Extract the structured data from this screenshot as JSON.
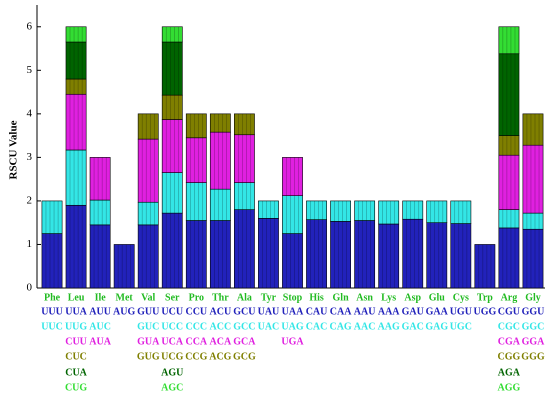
{
  "chart_data": {
    "type": "stacked_bar",
    "ylabel": "RSCU Value",
    "categories": [
      "Phe",
      "Leu",
      "Ile",
      "Met",
      "Val",
      "Ser",
      "Pro",
      "Thr",
      "Ala",
      "Tyr",
      "Stop",
      "His",
      "Gln",
      "Asn",
      "Lys",
      "Asp",
      "Glu",
      "Cys",
      "Trp",
      "Arg",
      "Gly"
    ],
    "ylim": [
      0,
      6.5
    ],
    "yticks": [
      0,
      1,
      2,
      3,
      4,
      5,
      6
    ],
    "series": [
      {
        "color": "#2222bb",
        "values": [
          1.25,
          1.9,
          1.45,
          1.0,
          1.45,
          1.72,
          1.55,
          1.55,
          1.8,
          1.6,
          1.25,
          1.57,
          1.53,
          1.55,
          1.47,
          1.58,
          1.5,
          1.48,
          1.0,
          1.38,
          1.35
        ],
        "codons": [
          "UUU",
          "UUA",
          "AUU",
          "AUG",
          "GUU",
          "UCU",
          "CCU",
          "ACU",
          "GCU",
          "UAU",
          "UAA",
          "CAU",
          "CAA",
          "AAU",
          "AAA",
          "GAU",
          "GAA",
          "UGU",
          "UGG",
          "CGU",
          "GGU"
        ]
      },
      {
        "color": "#33e6e6",
        "values": [
          0.75,
          1.27,
          0.57,
          null,
          0.52,
          0.93,
          0.87,
          0.72,
          0.62,
          0.4,
          0.87,
          0.43,
          0.47,
          0.45,
          0.53,
          0.42,
          0.5,
          0.52,
          null,
          0.42,
          0.37
        ],
        "codons": [
          "UUC",
          "UUG",
          "AUC",
          null,
          "GUC",
          "UCC",
          "CCC",
          "ACC",
          "GCC",
          "UAC",
          "UAG",
          "CAC",
          "CAG",
          "AAC",
          "AAG",
          "GAC",
          "GAG",
          "UGC",
          null,
          "CGC",
          "GGC"
        ]
      },
      {
        "color": "#e020e0",
        "values": [
          null,
          1.28,
          0.98,
          null,
          1.45,
          1.22,
          1.03,
          1.31,
          1.1,
          null,
          0.88,
          null,
          null,
          null,
          null,
          null,
          null,
          null,
          null,
          1.25,
          1.56
        ],
        "codons": [
          null,
          "CUU",
          "AUA",
          null,
          "GUA",
          "UCA",
          "CCA",
          "ACA",
          "GCA",
          null,
          "UGA",
          null,
          null,
          null,
          null,
          null,
          null,
          null,
          null,
          "CGA",
          "GGA"
        ]
      },
      {
        "color": "#7f7f00",
        "values": [
          null,
          0.35,
          null,
          null,
          0.58,
          0.56,
          0.55,
          0.42,
          0.48,
          null,
          null,
          null,
          null,
          null,
          null,
          null,
          null,
          null,
          null,
          0.45,
          0.72
        ],
        "codons": [
          null,
          "CUC",
          null,
          null,
          "GUG",
          "UCG",
          "CCG",
          "ACG",
          "GCG",
          null,
          null,
          null,
          null,
          null,
          null,
          null,
          null,
          null,
          null,
          "CGG",
          "GGG"
        ]
      },
      {
        "color": "#006400",
        "values": [
          null,
          0.85,
          null,
          null,
          null,
          1.22,
          null,
          null,
          null,
          null,
          null,
          null,
          null,
          null,
          null,
          null,
          null,
          null,
          null,
          1.88,
          null
        ],
        "codons": [
          null,
          "CUA",
          null,
          null,
          null,
          "AGU",
          null,
          null,
          null,
          null,
          null,
          null,
          null,
          null,
          null,
          null,
          null,
          null,
          null,
          "AGA",
          null
        ]
      },
      {
        "color": "#33dd33",
        "values": [
          null,
          0.35,
          null,
          null,
          null,
          0.35,
          null,
          null,
          null,
          null,
          null,
          null,
          null,
          null,
          null,
          null,
          null,
          null,
          null,
          0.62,
          null
        ],
        "codons": [
          null,
          "CUG",
          null,
          null,
          null,
          "AGC",
          null,
          null,
          null,
          null,
          null,
          null,
          null,
          null,
          null,
          null,
          null,
          null,
          null,
          "AGG",
          null
        ]
      }
    ],
    "category_color": "#22bb22"
  }
}
